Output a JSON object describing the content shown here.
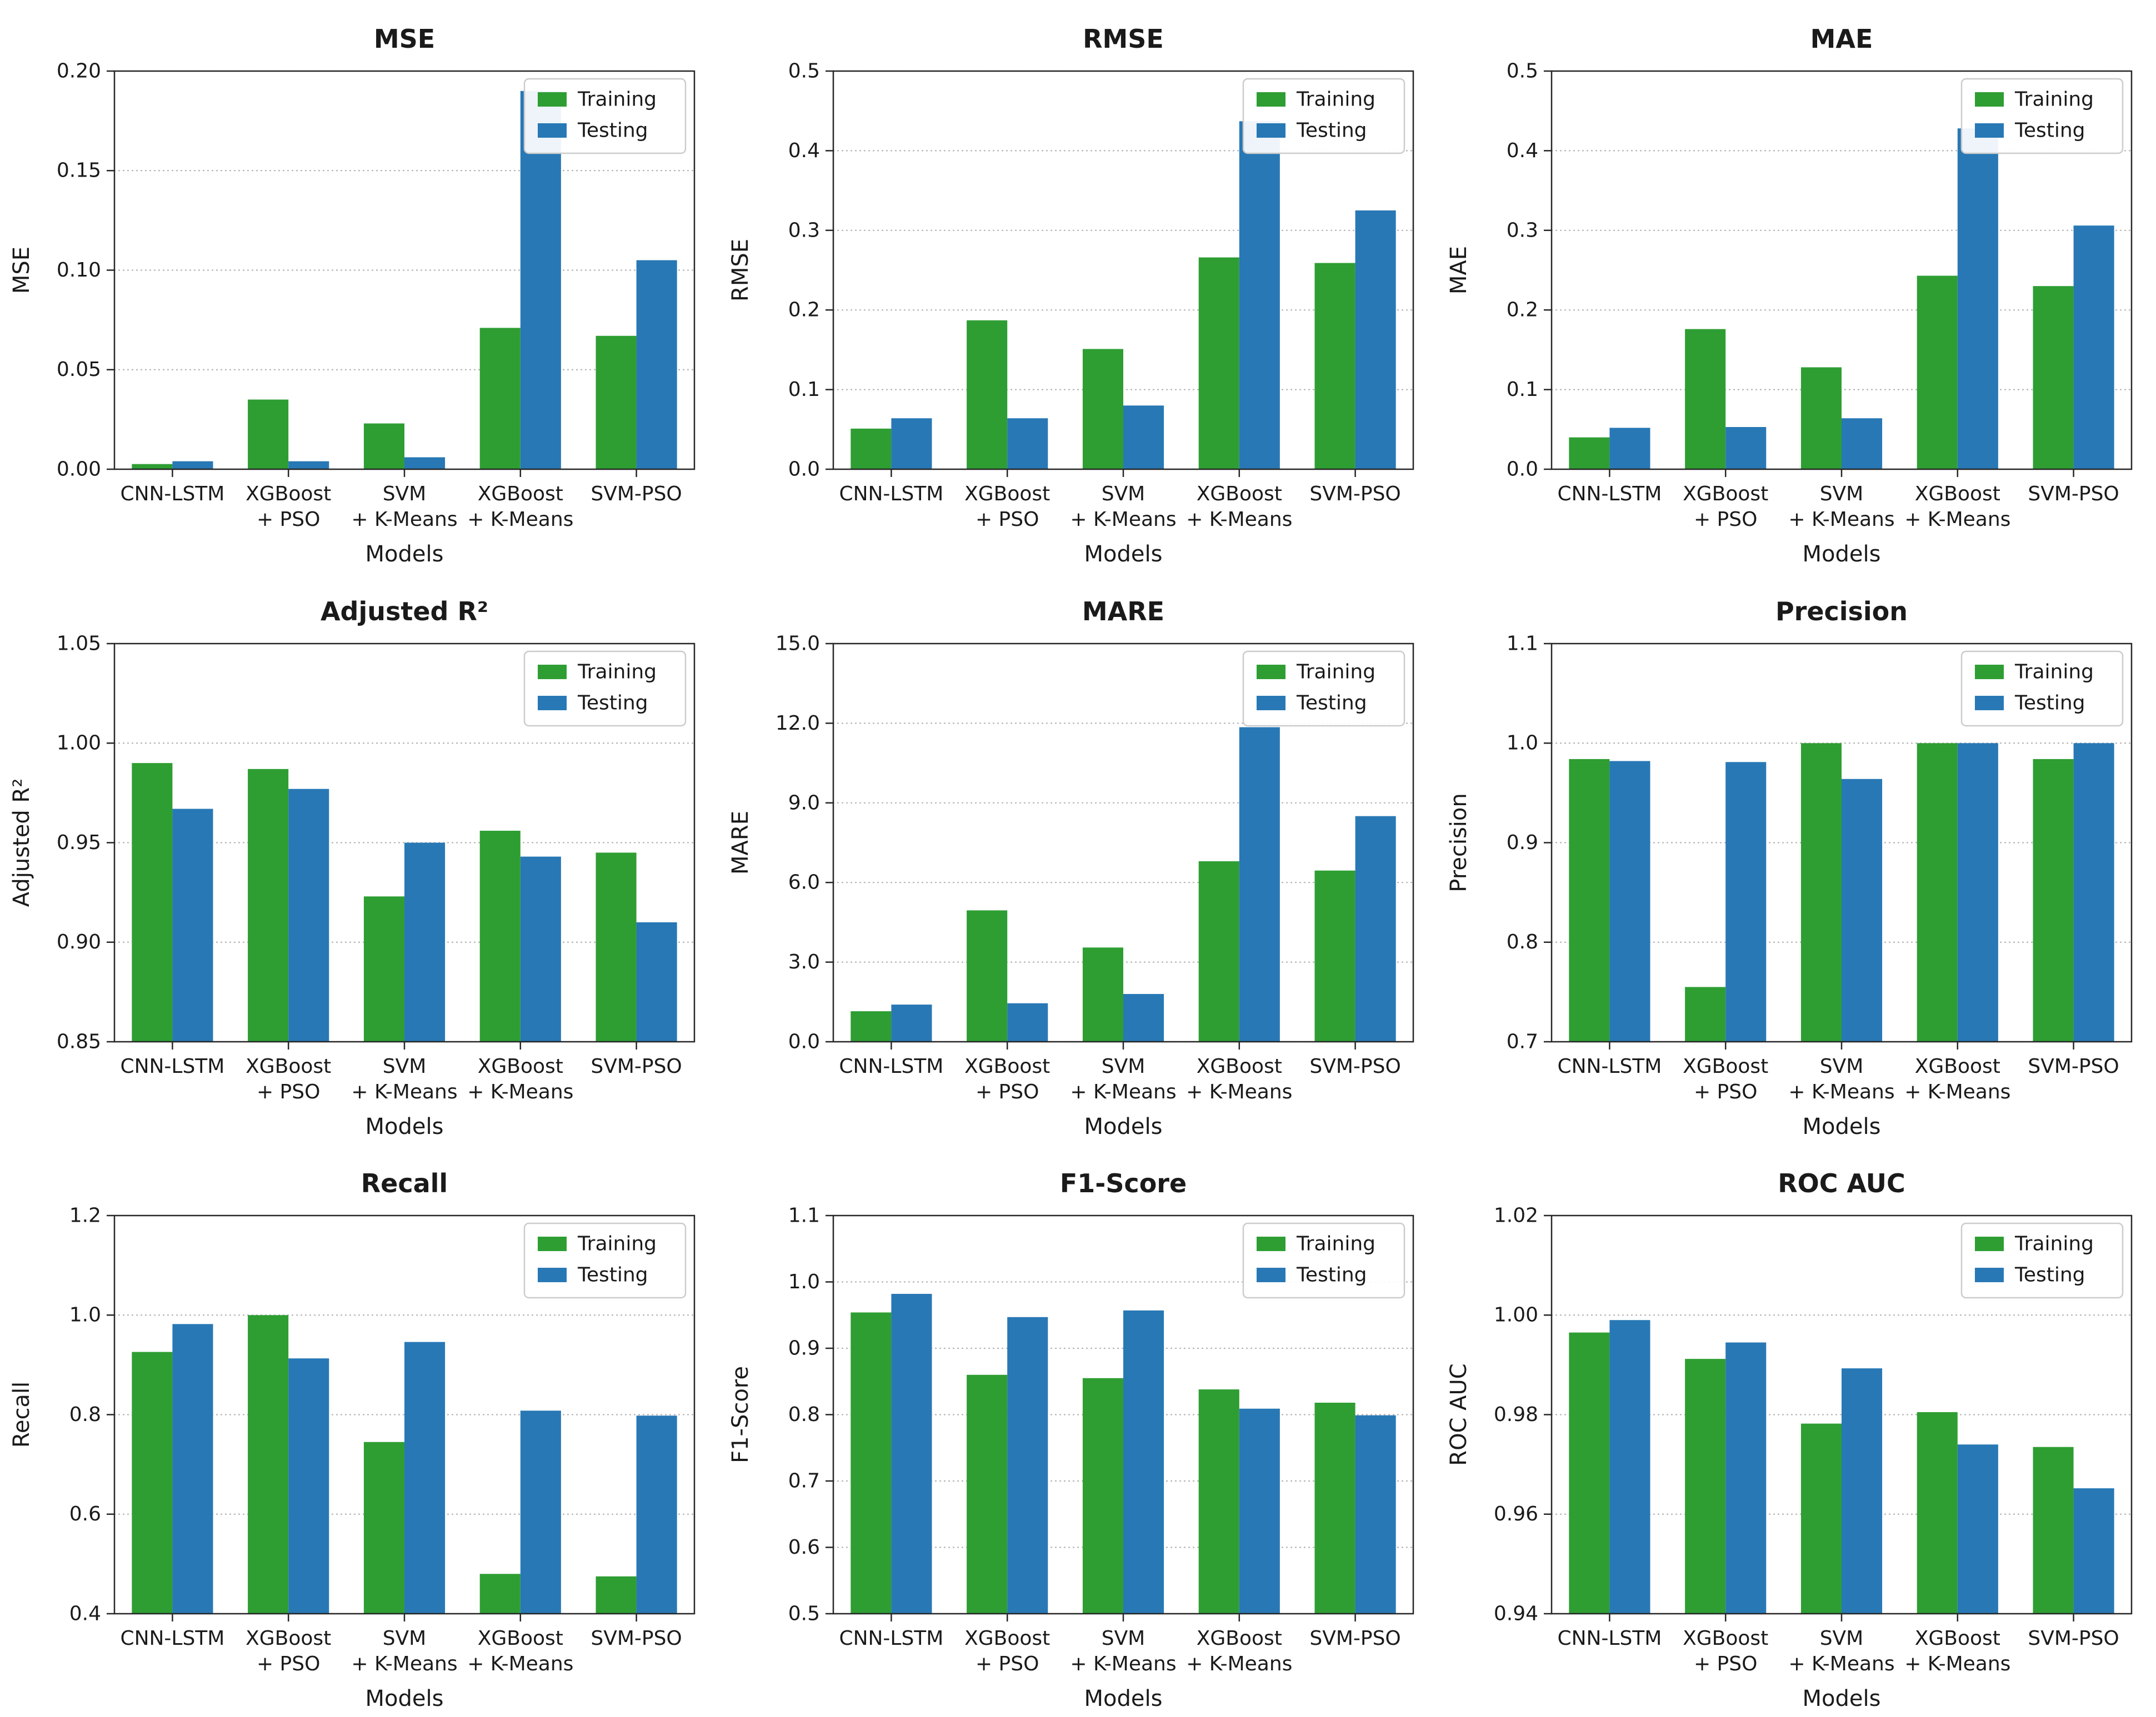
{
  "figure": {
    "legend": {
      "entries": [
        "Training",
        "Testing"
      ],
      "position": "upper right"
    },
    "colors": {
      "training": "#2e9e33",
      "testing": "#2878b5",
      "spine": "#262626",
      "grid": "#b0b0b0",
      "text": "#1a1a1a",
      "legend_border": "#cccccc",
      "background": "#ffffff"
    },
    "xlabel": "Models",
    "categories": [
      "CNN-LSTM",
      "XGBoost\n+ PSO",
      "SVM\n+ K-Means",
      "XGBoost\n+ K-Means",
      "SVM-PSO"
    ]
  },
  "chart_data": [
    {
      "type": "bar",
      "title": "MSE",
      "ylabel": "MSE",
      "xlabel": "Models",
      "categories": [
        "CNN-LSTM",
        "XGBoost\n+ PSO",
        "SVM\n+ K-Means",
        "XGBoost\n+ K-Means",
        "SVM-PSO"
      ],
      "series": [
        {
          "name": "Training",
          "values": [
            0.0026,
            0.035,
            0.023,
            0.071,
            0.067
          ]
        },
        {
          "name": "Testing",
          "values": [
            0.004,
            0.004,
            0.006,
            0.19,
            0.105
          ]
        }
      ],
      "ylim": [
        0.0,
        0.2
      ],
      "yticks": [
        0.0,
        0.05,
        0.1,
        0.15,
        0.2
      ],
      "ytick_decimals": 2,
      "grid": true,
      "legend_position": "upper right"
    },
    {
      "type": "bar",
      "title": "RMSE",
      "ylabel": "RMSE",
      "xlabel": "Models",
      "categories": [
        "CNN-LSTM",
        "XGBoost\n+ PSO",
        "SVM\n+ K-Means",
        "XGBoost\n+ K-Means",
        "SVM-PSO"
      ],
      "series": [
        {
          "name": "Training",
          "values": [
            0.051,
            0.187,
            0.151,
            0.266,
            0.259
          ]
        },
        {
          "name": "Testing",
          "values": [
            0.064,
            0.064,
            0.08,
            0.437,
            0.325
          ]
        }
      ],
      "ylim": [
        0.0,
        0.5
      ],
      "yticks": [
        0.0,
        0.1,
        0.2,
        0.3,
        0.4,
        0.5
      ],
      "ytick_decimals": 1,
      "grid": true,
      "legend_position": "upper right"
    },
    {
      "type": "bar",
      "title": "MAE",
      "ylabel": "MAE",
      "xlabel": "Models",
      "categories": [
        "CNN-LSTM",
        "XGBoost\n+ PSO",
        "SVM\n+ K-Means",
        "XGBoost\n+ K-Means",
        "SVM-PSO"
      ],
      "series": [
        {
          "name": "Training",
          "values": [
            0.04,
            0.176,
            0.128,
            0.243,
            0.23
          ]
        },
        {
          "name": "Testing",
          "values": [
            0.052,
            0.053,
            0.064,
            0.428,
            0.306
          ]
        }
      ],
      "ylim": [
        0.0,
        0.5
      ],
      "yticks": [
        0.0,
        0.1,
        0.2,
        0.3,
        0.4,
        0.5
      ],
      "ytick_decimals": 1,
      "grid": true,
      "legend_position": "upper right"
    },
    {
      "type": "bar",
      "title": "Adjusted R²",
      "ylabel": "Adjusted R²",
      "xlabel": "Models",
      "categories": [
        "CNN-LSTM",
        "XGBoost\n+ PSO",
        "SVM\n+ K-Means",
        "XGBoost\n+ K-Means",
        "SVM-PSO"
      ],
      "series": [
        {
          "name": "Training",
          "values": [
            0.99,
            0.987,
            0.923,
            0.956,
            0.945
          ]
        },
        {
          "name": "Testing",
          "values": [
            0.967,
            0.977,
            0.95,
            0.943,
            0.91
          ]
        }
      ],
      "ylim": [
        0.85,
        1.05
      ],
      "yticks": [
        0.85,
        0.9,
        0.95,
        1.0,
        1.05
      ],
      "ytick_decimals": 2,
      "grid": true,
      "legend_position": "upper right"
    },
    {
      "type": "bar",
      "title": "MARE",
      "ylabel": "MARE",
      "xlabel": "Models",
      "categories": [
        "CNN-LSTM",
        "XGBoost\n+ PSO",
        "SVM\n+ K-Means",
        "XGBoost\n+ K-Means",
        "SVM-PSO"
      ],
      "series": [
        {
          "name": "Training",
          "values": [
            1.15,
            4.95,
            3.55,
            6.8,
            6.45
          ]
        },
        {
          "name": "Testing",
          "values": [
            1.4,
            1.45,
            1.8,
            11.85,
            8.5
          ]
        }
      ],
      "ylim": [
        0.0,
        15.0
      ],
      "yticks": [
        0.0,
        3.0,
        6.0,
        9.0,
        12.0,
        15.0
      ],
      "ytick_decimals": 1,
      "grid": true,
      "legend_position": "upper right"
    },
    {
      "type": "bar",
      "title": "Precision",
      "ylabel": "Precision",
      "xlabel": "Models",
      "categories": [
        "CNN-LSTM",
        "XGBoost\n+ PSO",
        "SVM\n+ K-Means",
        "XGBoost\n+ K-Means",
        "SVM-PSO"
      ],
      "series": [
        {
          "name": "Training",
          "values": [
            0.984,
            0.755,
            1.0,
            1.0,
            0.984
          ]
        },
        {
          "name": "Testing",
          "values": [
            0.982,
            0.981,
            0.964,
            1.0,
            1.0
          ]
        }
      ],
      "ylim": [
        0.7,
        1.1
      ],
      "yticks": [
        0.7,
        0.8,
        0.9,
        1.0,
        1.1
      ],
      "ytick_decimals": 1,
      "grid": true,
      "legend_position": "upper right"
    },
    {
      "type": "bar",
      "title": "Recall",
      "ylabel": "Recall",
      "xlabel": "Models",
      "categories": [
        "CNN-LSTM",
        "XGBoost\n+ PSO",
        "SVM\n+ K-Means",
        "XGBoost\n+ K-Means",
        "SVM-PSO"
      ],
      "series": [
        {
          "name": "Training",
          "values": [
            0.926,
            1.0,
            0.745,
            0.48,
            0.475
          ]
        },
        {
          "name": "Testing",
          "values": [
            0.982,
            0.913,
            0.946,
            0.808,
            0.798
          ]
        }
      ],
      "ylim": [
        0.4,
        1.2
      ],
      "yticks": [
        0.4,
        0.6,
        0.8,
        1.0,
        1.2
      ],
      "ytick_decimals": 1,
      "grid": true,
      "legend_position": "upper right"
    },
    {
      "type": "bar",
      "title": "F1-Score",
      "ylabel": "F1-Score",
      "xlabel": "Models",
      "categories": [
        "CNN-LSTM",
        "XGBoost\n+ PSO",
        "SVM\n+ K-Means",
        "XGBoost\n+ K-Means",
        "SVM-PSO"
      ],
      "series": [
        {
          "name": "Training",
          "values": [
            0.954,
            0.86,
            0.855,
            0.838,
            0.818
          ]
        },
        {
          "name": "Testing",
          "values": [
            0.982,
            0.947,
            0.957,
            0.809,
            0.799
          ]
        }
      ],
      "ylim": [
        0.5,
        1.1
      ],
      "yticks": [
        0.5,
        0.6,
        0.7,
        0.8,
        0.9,
        1.0,
        1.1
      ],
      "ytick_decimals": 1,
      "grid": true,
      "legend_position": "upper right"
    },
    {
      "type": "bar",
      "title": "ROC AUC",
      "ylabel": "ROC AUC",
      "xlabel": "Models",
      "categories": [
        "CNN-LSTM",
        "XGBoost\n+ PSO",
        "SVM\n+ K-Means",
        "XGBoost\n+ K-Means",
        "SVM-PSO"
      ],
      "series": [
        {
          "name": "Training",
          "values": [
            0.9965,
            0.9912,
            0.9782,
            0.9805,
            0.9735
          ]
        },
        {
          "name": "Testing",
          "values": [
            0.999,
            0.9945,
            0.9893,
            0.974,
            0.9652
          ]
        }
      ],
      "ylim": [
        0.94,
        1.02
      ],
      "yticks": [
        0.94,
        0.96,
        0.98,
        1.0,
        1.02
      ],
      "ytick_decimals": 2,
      "grid": true,
      "legend_position": "upper right"
    }
  ]
}
